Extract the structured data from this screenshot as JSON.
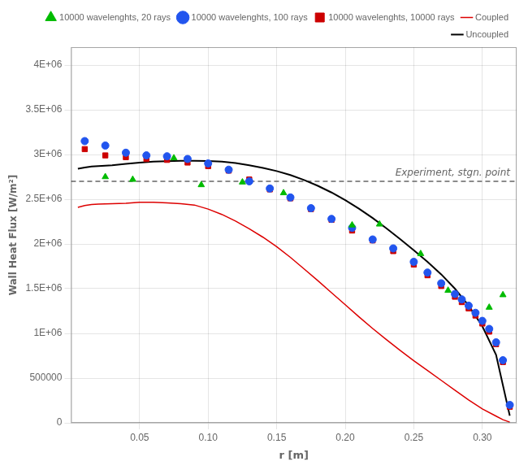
{
  "chart_data": {
    "type": "scatter",
    "xlabel": "r [m]",
    "ylabel": "Wall Heat Flux [W/m²]",
    "xlim": [
      0.0,
      0.325
    ],
    "ylim": [
      0,
      4200000
    ],
    "xticks": [
      0.05,
      {
        "value": 0.1,
        "label": "0.10"
      },
      0.15,
      {
        "value": 0.2,
        "label": "0.20"
      },
      0.25,
      {
        "value": 0.3,
        "label": "0.30"
      }
    ],
    "yticks": [
      0,
      500000,
      {
        "value": 1000000,
        "label": "1E+06"
      },
      {
        "value": 1500000,
        "label": "1.5E+06"
      },
      {
        "value": 2000000,
        "label": "2E+06"
      },
      {
        "value": 2500000,
        "label": "2.5E+06"
      },
      {
        "value": 3000000,
        "label": "3E+06"
      },
      {
        "value": 3500000,
        "label": "3.5E+06"
      },
      {
        "value": 4000000,
        "label": "4E+06"
      }
    ],
    "grid": true,
    "legend": "upper right",
    "annotations": [
      {
        "text": "Experiment, stgn. point",
        "y": 2700000,
        "color": "#666666",
        "line_style": "dashed"
      }
    ],
    "series": [
      {
        "name": "Coupled",
        "type": "line",
        "line_style": "solid",
        "color": "#dd0000",
        "x": [
          0.005,
          0.01,
          0.015,
          0.02,
          0.03,
          0.04,
          0.05,
          0.06,
          0.07,
          0.08,
          0.09,
          0.1,
          0.11,
          0.12,
          0.13,
          0.14,
          0.15,
          0.16,
          0.17,
          0.18,
          0.19,
          0.2,
          0.21,
          0.22,
          0.23,
          0.24,
          0.25,
          0.26,
          0.27,
          0.28,
          0.29,
          0.3,
          0.31,
          0.315,
          0.32
        ],
        "values": [
          2410000,
          2430000,
          2440000,
          2445000,
          2450000,
          2455000,
          2465000,
          2465000,
          2460000,
          2450000,
          2435000,
          2390000,
          2330000,
          2255000,
          2170000,
          2075000,
          1970000,
          1850000,
          1720000,
          1590000,
          1455000,
          1320000,
          1185000,
          1055000,
          930000,
          810000,
          695000,
          585000,
          475000,
          365000,
          255000,
          155000,
          75000,
          35000,
          8000
        ]
      },
      {
        "name": "Uncoupled",
        "type": "line",
        "line_style": "solid",
        "color": "#000000",
        "x": [
          0.005,
          0.01,
          0.015,
          0.02,
          0.03,
          0.04,
          0.05,
          0.06,
          0.07,
          0.08,
          0.09,
          0.1,
          0.11,
          0.12,
          0.13,
          0.14,
          0.15,
          0.16,
          0.17,
          0.18,
          0.19,
          0.2,
          0.21,
          0.22,
          0.23,
          0.24,
          0.25,
          0.26,
          0.27,
          0.28,
          0.29,
          0.3,
          0.31,
          0.315,
          0.32
        ],
        "values": [
          2840000,
          2855000,
          2865000,
          2870000,
          2880000,
          2895000,
          2910000,
          2920000,
          2925000,
          2930000,
          2930000,
          2928000,
          2920000,
          2905000,
          2880000,
          2850000,
          2815000,
          2770000,
          2715000,
          2650000,
          2575000,
          2490000,
          2395000,
          2290000,
          2175000,
          2055000,
          1930000,
          1800000,
          1660000,
          1500000,
          1310000,
          1080000,
          760000,
          420000,
          80000
        ]
      },
      {
        "name": "10000 wavelenghts, 20 rays",
        "type": "scatter",
        "marker": "triangle",
        "color": "#00bb00",
        "x": [
          0.025,
          0.045,
          0.075,
          0.095,
          0.125,
          0.155,
          0.205,
          0.225,
          0.255,
          0.275,
          0.305,
          0.315
        ],
        "values": [
          2750000,
          2720000,
          2960000,
          2660000,
          2690000,
          2570000,
          2210000,
          2220000,
          1890000,
          1480000,
          1290000,
          1430000
        ]
      },
      {
        "name": "10000 wavelenghts, 100 rays",
        "type": "scatter",
        "marker": "circle",
        "color": "#2255ee",
        "x": [
          0.01,
          0.025,
          0.04,
          0.055,
          0.07,
          0.085,
          0.1,
          0.115,
          0.13,
          0.145,
          0.16,
          0.175,
          0.19,
          0.205,
          0.22,
          0.235,
          0.25,
          0.26,
          0.27,
          0.28,
          0.285,
          0.29,
          0.295,
          0.3,
          0.305,
          0.31,
          0.315,
          0.32
        ],
        "values": [
          3150000,
          3100000,
          3020000,
          2990000,
          2980000,
          2950000,
          2900000,
          2830000,
          2700000,
          2620000,
          2520000,
          2400000,
          2280000,
          2180000,
          2050000,
          1950000,
          1800000,
          1680000,
          1560000,
          1440000,
          1380000,
          1310000,
          1230000,
          1140000,
          1050000,
          900000,
          700000,
          200000
        ]
      },
      {
        "name": "10000 wavelenghts, 10000 rays",
        "type": "scatter",
        "marker": "square",
        "color": "#cc0000",
        "x": [
          0.01,
          0.025,
          0.04,
          0.055,
          0.07,
          0.085,
          0.1,
          0.115,
          0.13,
          0.145,
          0.16,
          0.175,
          0.19,
          0.205,
          0.22,
          0.235,
          0.25,
          0.26,
          0.27,
          0.28,
          0.285,
          0.29,
          0.295,
          0.3,
          0.305,
          0.31,
          0.315,
          0.32
        ],
        "values": [
          3060000,
          2990000,
          2970000,
          2950000,
          2940000,
          2910000,
          2870000,
          2820000,
          2720000,
          2610000,
          2510000,
          2390000,
          2270000,
          2150000,
          2040000,
          1920000,
          1770000,
          1650000,
          1530000,
          1410000,
          1350000,
          1280000,
          1200000,
          1110000,
          1020000,
          880000,
          680000,
          180000
        ]
      }
    ]
  }
}
